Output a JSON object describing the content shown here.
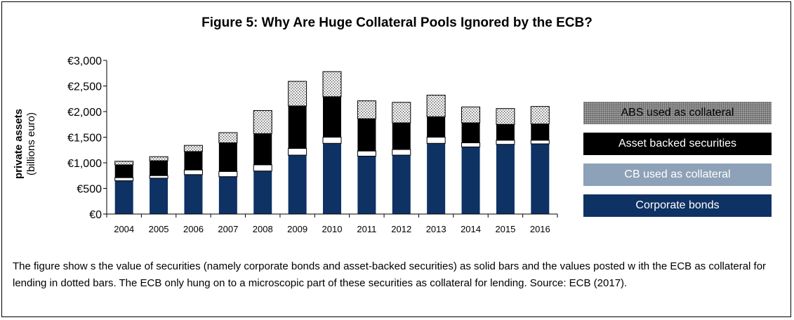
{
  "title": "Figure 5: Why Are Huge Collateral Pools Ignored by the ECB?",
  "y_axis_label": {
    "main": "private assets",
    "unit": "(billions euro)"
  },
  "caption": "The figure show s the value of securities (namely corporate bonds and asset-backed securities) as solid bars and the values posted w ith the ECB as collateral for lending in dotted bars. The ECB only hung on to a microscopic part of these securities as collateral for lending. Source: ECB (2017).",
  "colors": {
    "corporate_bonds": "#0e3264",
    "cb_collateral": "#8da1b8",
    "asset_backed": "#000000",
    "abs_collateral": "#b4b4b4"
  },
  "legend": [
    {
      "label": "ABS used as collateral",
      "series": "abs_collateral",
      "pattern": "dotted",
      "text_color": "#000000"
    },
    {
      "label": "Asset backed securities",
      "series": "asset_backed",
      "pattern": "solid",
      "text_color": "#ffffff"
    },
    {
      "label": "CB used as collateral",
      "series": "cb_collateral",
      "pattern": "solid",
      "text_color": "#ffffff"
    },
    {
      "label": "Corporate bonds",
      "series": "corporate_bonds",
      "pattern": "solid",
      "text_color": "#ffffff"
    }
  ],
  "chart_data": {
    "type": "bar",
    "categories": [
      "2004",
      "2005",
      "2006",
      "2007",
      "2008",
      "2009",
      "2010",
      "2011",
      "2012",
      "2013",
      "2014",
      "2015",
      "2016"
    ],
    "y_ticks": [
      {
        "value": 0,
        "label": "€0"
      },
      {
        "value": 500,
        "label": "€500"
      },
      {
        "value": 1000,
        "label": "€1,000"
      },
      {
        "value": 1500,
        "label": "€1,500"
      },
      {
        "value": 2000,
        "label": "€2,000"
      },
      {
        "value": 2500,
        "label": "€2,500"
      },
      {
        "value": 3000,
        "label": "€3,000"
      }
    ],
    "ylim": [
      0,
      3000
    ],
    "grid": false,
    "legend_position": "right",
    "series": [
      {
        "name": "Corporate bonds",
        "key": "corporate_bonds",
        "style": "solid",
        "values": [
          650,
          700,
          770,
          730,
          840,
          1150,
          1380,
          1130,
          1150,
          1380,
          1310,
          1360,
          1370
        ]
      },
      {
        "name": "CB used as collateral",
        "key": "cb_collateral",
        "style": "outlined",
        "values": [
          60,
          50,
          90,
          100,
          120,
          130,
          120,
          100,
          110,
          120,
          80,
          80,
          70
        ]
      },
      {
        "name": "Asset backed securities",
        "key": "asset_backed",
        "style": "solid",
        "values": [
          250,
          290,
          360,
          560,
          610,
          830,
          790,
          630,
          520,
          400,
          390,
          310,
          320
        ]
      },
      {
        "name": "ABS used as collateral",
        "key": "abs_collateral",
        "style": "dotted",
        "values": [
          70,
          80,
          120,
          200,
          450,
          480,
          490,
          350,
          400,
          420,
          310,
          310,
          340
        ]
      }
    ]
  }
}
